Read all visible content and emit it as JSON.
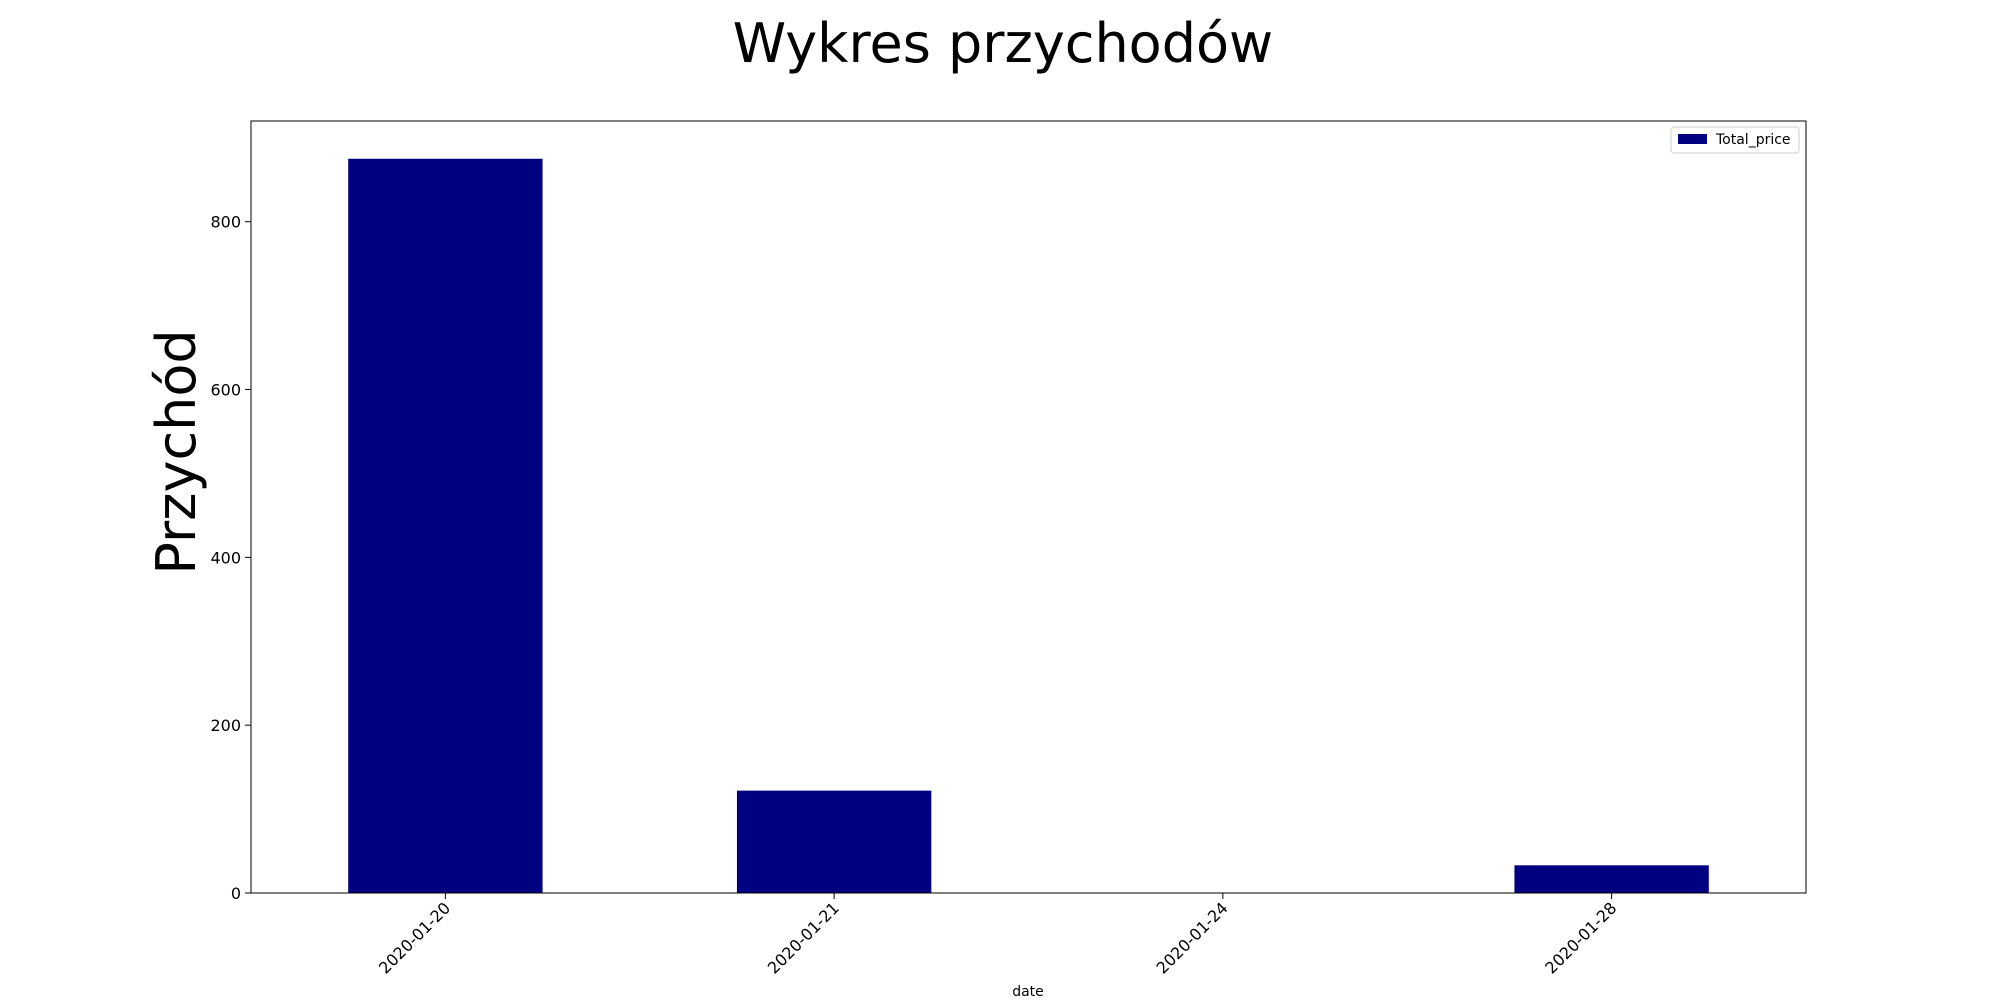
{
  "chart_data": {
    "type": "bar",
    "title": "Wykres przychodów",
    "xlabel": "date",
    "ylabel": "Przychód",
    "categories": [
      "2020-01-20",
      "2020-01-21",
      "2020-01-24",
      "2020-01-28"
    ],
    "series": [
      {
        "name": "Total_price",
        "values": [
          875,
          122,
          0,
          33
        ],
        "color": "#000080"
      }
    ],
    "ylim": [
      0,
      920
    ],
    "yticks": [
      0,
      200,
      400,
      600,
      800
    ],
    "grid": false,
    "legend_position": "top-right"
  }
}
